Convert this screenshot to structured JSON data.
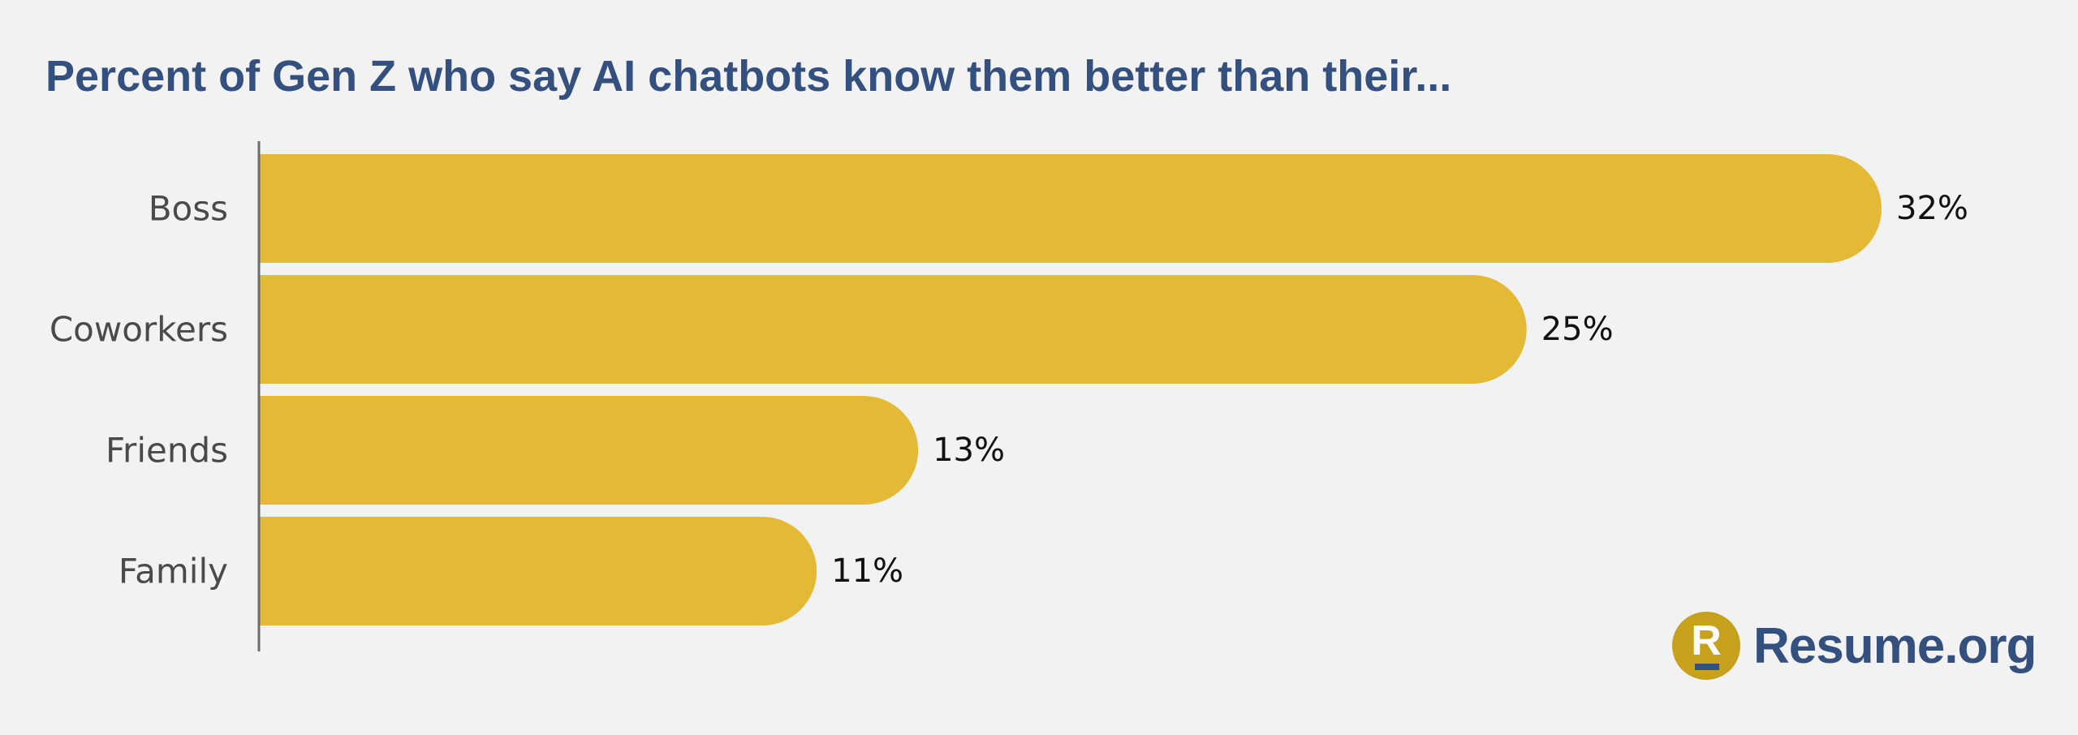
{
  "chart_data": {
    "type": "bar",
    "orientation": "horizontal",
    "title": "Percent of Gen Z who say AI chatbots know them better than their...",
    "categories": [
      "Boss",
      "Coworkers",
      "Friends",
      "Family"
    ],
    "values": [
      32,
      25,
      13,
      11
    ],
    "value_labels": [
      "32%",
      "25%",
      "13%",
      "11%"
    ],
    "xlim": [
      0,
      32
    ],
    "grid": false,
    "bar_color": "#e3b936"
  },
  "branding": {
    "logo_letter": "R",
    "logo_text": "Resume.org"
  },
  "colors": {
    "title": "#34507f",
    "bar": "#e3b936",
    "axis": "#6d6d6d",
    "logo_badge": "#c7a01c",
    "background": "#f2f2f2"
  }
}
